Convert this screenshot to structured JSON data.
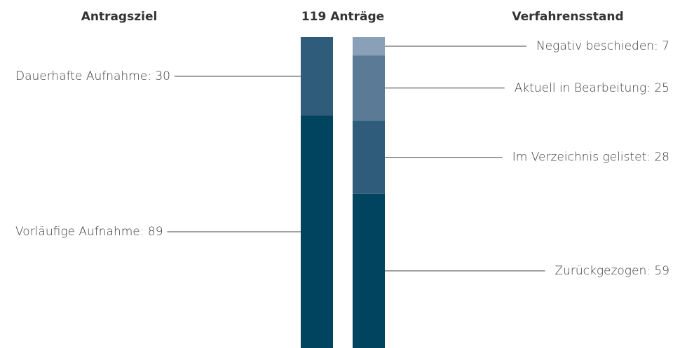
{
  "chart_data": {
    "type": "stacked-bar",
    "title": "119 Anträge",
    "ylim": [
      0,
      119
    ],
    "bars": [
      {
        "label": "Antragsziel",
        "segments": [
          {
            "label": "Vorläufige Aufnahme: 89",
            "value": 89,
            "color": "#00445f"
          },
          {
            "label": "Dauerhafte Aufnahme: 30",
            "value": 30,
            "color": "#2e5c7a"
          }
        ]
      },
      {
        "label": "Verfahrensstand",
        "segments": [
          {
            "label": "Zurückgezogen: 59",
            "value": 59,
            "color": "#00445f"
          },
          {
            "label": "Im Verzeichnis gelistet: 28",
            "value": 28,
            "color": "#2e5c7a"
          },
          {
            "label": "Aktuell in Bearbeitung: 25",
            "value": 25,
            "color": "#5b7a96"
          },
          {
            "label": "Negativ beschieden: 7",
            "value": 7,
            "color": "#8a9fb8"
          }
        ]
      }
    ]
  }
}
